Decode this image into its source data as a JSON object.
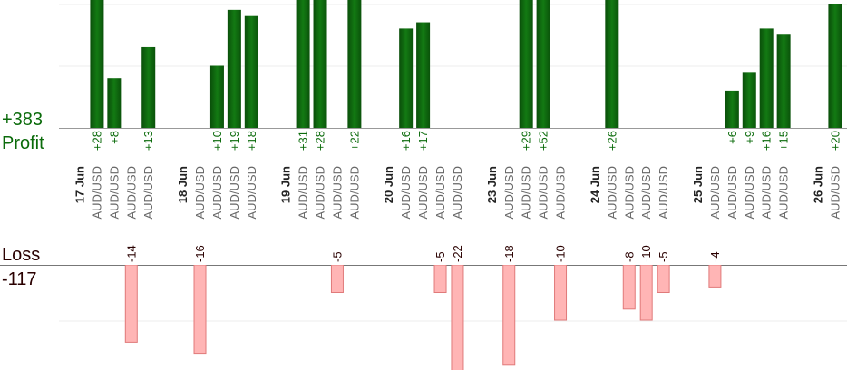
{
  "chart_data": {
    "type": "bar",
    "profit_label": "Profit",
    "profit_total": "+383",
    "loss_label": "Loss",
    "loss_total": "-117",
    "categories": [
      "17 Jun",
      "AUD/USD",
      "AUD/USD",
      "AUD/USD",
      "AUD/USD",
      "18 Jun",
      "AUD/USD",
      "AUD/USD",
      "AUD/USD",
      "AUD/USD",
      "19 Jun",
      "AUD/USD",
      "AUD/USD",
      "AUD/USD",
      "AUD/USD",
      "20 Jun",
      "AUD/USD",
      "AUD/USD",
      "AUD/USD",
      "AUD/USD",
      "23 Jun",
      "AUD/USD",
      "AUD/USD",
      "AUD/USD",
      "AUD/USD",
      "24 Jun",
      "AUD/USD",
      "AUD/USD",
      "AUD/USD",
      "AUD/USD",
      "25 Jun",
      "AUD/USD",
      "AUD/USD",
      "AUD/USD",
      "AUD/USD",
      "AUD/USD",
      "26 Jun",
      "AUD/USD"
    ],
    "values": [
      null,
      28,
      8,
      -14,
      13,
      null,
      -16,
      10,
      19,
      18,
      null,
      31,
      28,
      -5,
      22,
      null,
      16,
      17,
      -5,
      -22,
      null,
      -18,
      29,
      52,
      -10,
      null,
      26,
      -8,
      -10,
      -5,
      null,
      -4,
      6,
      9,
      16,
      15,
      null,
      20
    ],
    "value_labels": [
      null,
      "+28",
      "+8",
      "-14",
      "+13",
      null,
      "-16",
      "+10",
      "+19",
      "+18",
      null,
      "+31",
      "+28",
      "-5",
      "+22",
      null,
      "+16",
      "+17",
      "-5",
      "-22",
      null,
      "-18",
      "+29",
      "+52",
      "-10",
      null,
      "+26",
      "-8",
      "-10",
      "-5",
      null,
      "-4",
      "+6",
      "+9",
      "+16",
      "+15",
      null,
      "+20"
    ],
    "profit_color": "#0b5e0b",
    "loss_color": "#ffb5b5"
  }
}
